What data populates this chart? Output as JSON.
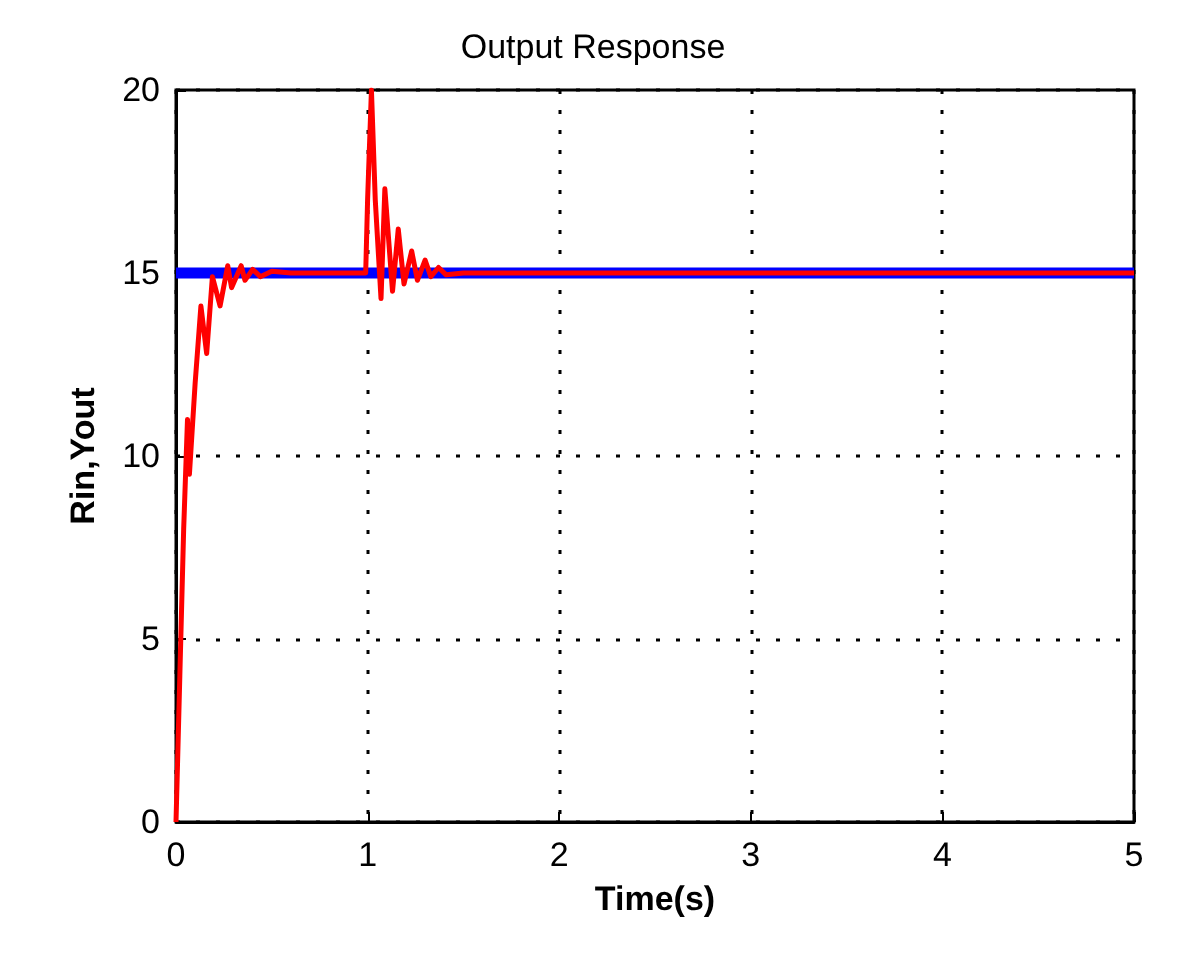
{
  "chart_data": {
    "type": "line",
    "title": "Output Response",
    "xlabel": "Time(s)",
    "ylabel": "Rin,Yout",
    "xlim": [
      0,
      5
    ],
    "xticks": [
      0,
      1,
      2,
      3,
      4,
      5
    ],
    "ylim": [
      0,
      20
    ],
    "yticks": [
      0,
      5,
      10,
      15,
      20
    ],
    "grid": true,
    "line_style": "solid",
    "marker": "none",
    "series": [
      {
        "color": "#0000ff",
        "x": [
          0,
          5
        ],
        "values": [
          15,
          15
        ]
      },
      {
        "color": "#ff0000",
        "x": [
          0,
          0.02,
          0.04,
          0.06,
          0.07,
          0.1,
          0.13,
          0.16,
          0.19,
          0.23,
          0.27,
          0.29,
          0.34,
          0.36,
          0.4,
          0.44,
          0.5,
          0.6,
          0.99,
          1.0,
          1.02,
          1.04,
          1.07,
          1.09,
          1.13,
          1.16,
          1.19,
          1.23,
          1.26,
          1.3,
          1.33,
          1.37,
          1.41,
          1.5,
          5
        ],
        "values": [
          0,
          4,
          8,
          11,
          9.5,
          12,
          14.1,
          12.8,
          14.9,
          14.1,
          15.2,
          14.6,
          15.2,
          14.8,
          15.1,
          14.9,
          15.05,
          15,
          15,
          17,
          20,
          17,
          14.3,
          17.3,
          14.5,
          16.2,
          14.7,
          15.6,
          14.8,
          15.35,
          14.9,
          15.15,
          14.95,
          15,
          15
        ]
      }
    ]
  }
}
